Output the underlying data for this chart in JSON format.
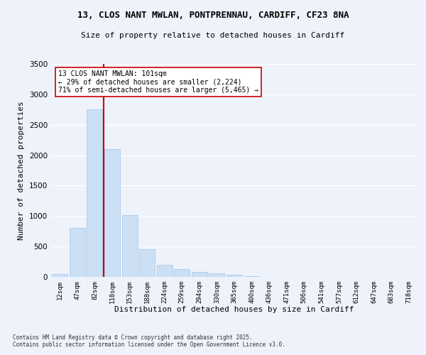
{
  "title1": "13, CLOS NANT MWLAN, PONTPRENNAU, CARDIFF, CF23 8NA",
  "title2": "Size of property relative to detached houses in Cardiff",
  "xlabel": "Distribution of detached houses by size in Cardiff",
  "ylabel": "Number of detached properties",
  "categories": [
    "12sqm",
    "47sqm",
    "82sqm",
    "118sqm",
    "153sqm",
    "188sqm",
    "224sqm",
    "259sqm",
    "294sqm",
    "330sqm",
    "365sqm",
    "400sqm",
    "436sqm",
    "471sqm",
    "506sqm",
    "541sqm",
    "577sqm",
    "612sqm",
    "647sqm",
    "683sqm",
    "718sqm"
  ],
  "values": [
    50,
    800,
    2750,
    2100,
    1020,
    450,
    200,
    130,
    80,
    55,
    30,
    15,
    5,
    2,
    1,
    0,
    0,
    0,
    0,
    0,
    0
  ],
  "bar_color": "#cce0f5",
  "bar_edge_color": "#a0c4e8",
  "vline_x_index": 2,
  "vline_color": "#cc0000",
  "annotation_text": "13 CLOS NANT MWLAN: 101sqm\n← 29% of detached houses are smaller (2,224)\n71% of semi-detached houses are larger (5,465) →",
  "annotation_box_color": "#ffffff",
  "annotation_box_edge": "#cc0000",
  "ylim": [
    0,
    3500
  ],
  "yticks": [
    0,
    500,
    1000,
    1500,
    2000,
    2500,
    3000,
    3500
  ],
  "background_color": "#eef2fb",
  "grid_color": "#ffffff",
  "footer1": "Contains HM Land Registry data © Crown copyright and database right 2025.",
  "footer2": "Contains public sector information licensed under the Open Government Licence v3.0."
}
